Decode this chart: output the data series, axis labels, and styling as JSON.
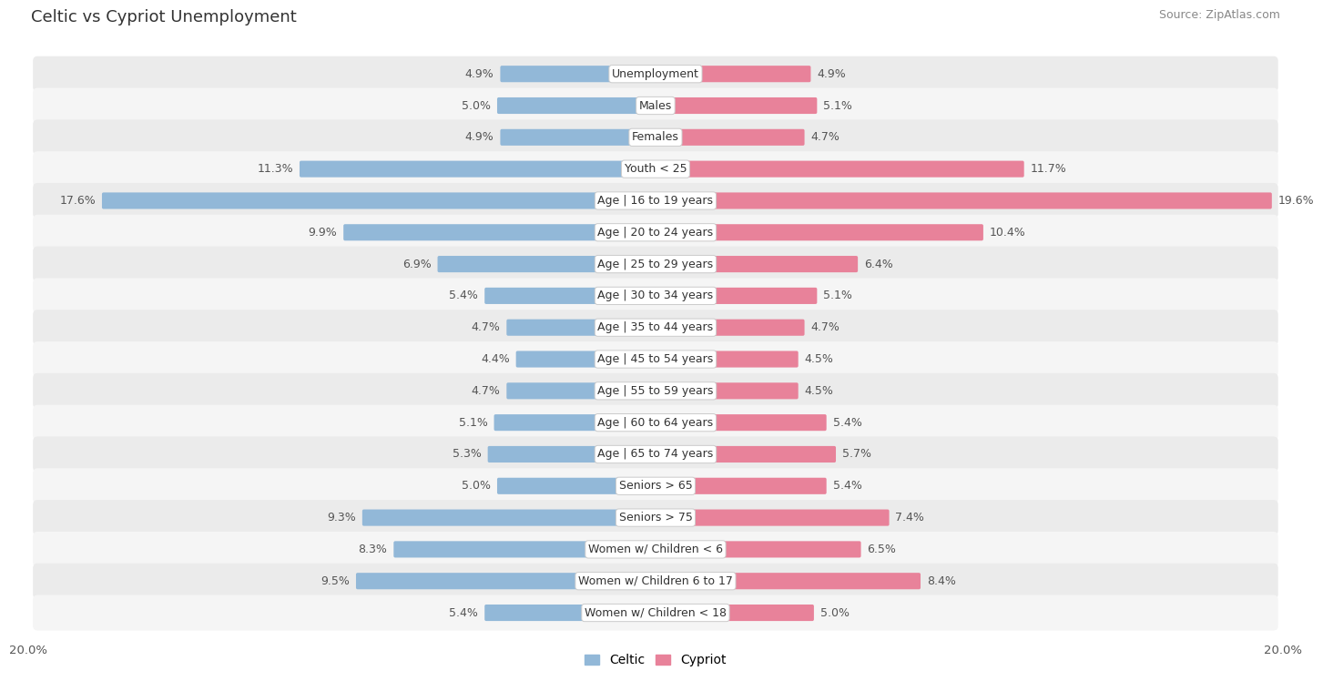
{
  "title": "Celtic vs Cypriot Unemployment",
  "source": "Source: ZipAtlas.com",
  "categories": [
    "Unemployment",
    "Males",
    "Females",
    "Youth < 25",
    "Age | 16 to 19 years",
    "Age | 20 to 24 years",
    "Age | 25 to 29 years",
    "Age | 30 to 34 years",
    "Age | 35 to 44 years",
    "Age | 45 to 54 years",
    "Age | 55 to 59 years",
    "Age | 60 to 64 years",
    "Age | 65 to 74 years",
    "Seniors > 65",
    "Seniors > 75",
    "Women w/ Children < 6",
    "Women w/ Children 6 to 17",
    "Women w/ Children < 18"
  ],
  "celtic": [
    4.9,
    5.0,
    4.9,
    11.3,
    17.6,
    9.9,
    6.9,
    5.4,
    4.7,
    4.4,
    4.7,
    5.1,
    5.3,
    5.0,
    9.3,
    8.3,
    9.5,
    5.4
  ],
  "cypriot": [
    4.9,
    5.1,
    4.7,
    11.7,
    19.6,
    10.4,
    6.4,
    5.1,
    4.7,
    4.5,
    4.5,
    5.4,
    5.7,
    5.4,
    7.4,
    6.5,
    8.4,
    5.0
  ],
  "celtic_color": "#92b8d8",
  "cypriot_color": "#e8829a",
  "row_bg_light": "#f5f5f5",
  "row_bg_dark": "#ebebeb",
  "label_color": "#555555",
  "axis_max": 20.0,
  "label_fontsize": 9.0,
  "category_fontsize": 9.0,
  "title_fontsize": 13,
  "source_fontsize": 9
}
